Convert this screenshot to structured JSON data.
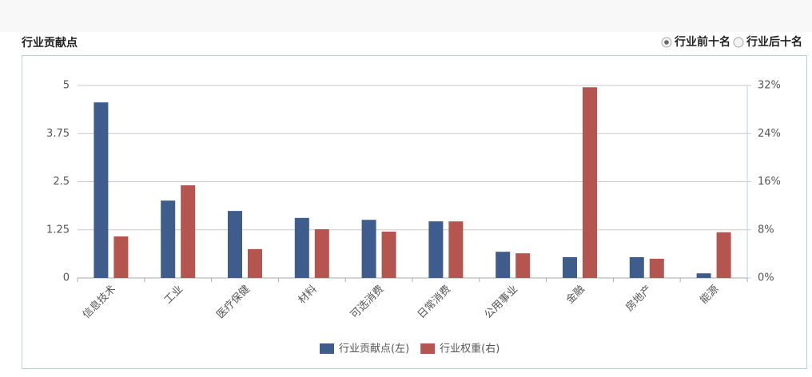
{
  "chart_data": {
    "type": "bar",
    "title": "行业贡献点",
    "categories": [
      "信息技术",
      "工业",
      "医疗保健",
      "材料",
      "可选消费",
      "日常消费",
      "公用事业",
      "金融",
      "房地产",
      "能源"
    ],
    "series": [
      {
        "name": "行业贡献点(左)",
        "color": "#3f5d8c",
        "values": [
          4.56,
          2.01,
          1.74,
          1.56,
          1.51,
          1.47,
          0.68,
          0.54,
          0.54,
          0.12
        ]
      },
      {
        "name": "行业权重(右)",
        "color": "#b5554f",
        "axis": "y2",
        "values": [
          6.9,
          15.4,
          4.8,
          8.1,
          7.7,
          9.4,
          4.1,
          31.7,
          3.2,
          7.6
        ]
      }
    ],
    "ylim": [
      0,
      5
    ],
    "yticks": [
      0,
      1.25,
      2.5,
      3.75,
      5
    ],
    "y2lim": [
      0,
      32
    ],
    "y2ticks": [
      {
        "value": 0,
        "label": "0%"
      },
      {
        "value": 8,
        "label": "8%"
      },
      {
        "value": 16,
        "label": "16%"
      },
      {
        "value": 24,
        "label": "24%"
      },
      {
        "value": 32,
        "label": "32%"
      }
    ],
    "grid": true,
    "legend": "bottom"
  },
  "options": {
    "items": [
      "行业前十名",
      "行业后十名"
    ],
    "selected": 0
  }
}
